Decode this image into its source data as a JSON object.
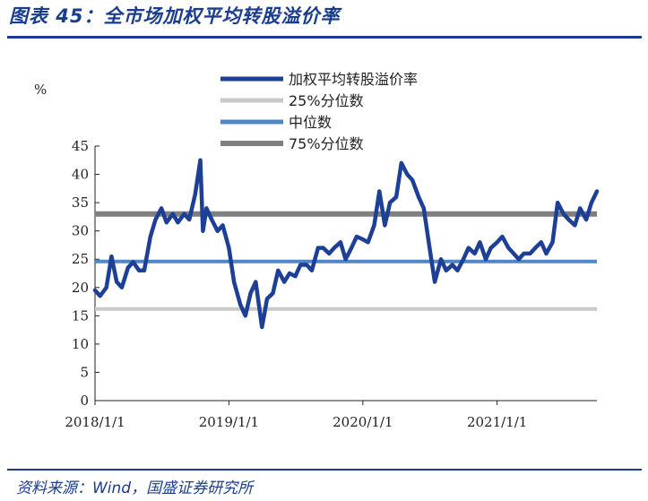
{
  "figure": {
    "title": "图表 45：全市场加权平均转股溢价率",
    "source": "资料来源：Wind，国盛证券研究所"
  },
  "colors": {
    "main": "#1d3f96",
    "p25": "#c9c9c9",
    "median": "#4f86c6",
    "p75": "#7f7f7f",
    "accent": "#1a3d8f"
  },
  "chart_data": {
    "type": "line",
    "title": "",
    "xlabel": "",
    "ylabel": "%",
    "ylim": [
      0,
      45
    ],
    "yticks": [
      "0",
      "5",
      "10",
      "15",
      "20",
      "25",
      "30",
      "35",
      "40",
      "45"
    ],
    "xlim": [
      "2018-01-01",
      "2021-09-30"
    ],
    "xticks": [
      "2018/1/1",
      "2019/1/1",
      "2020/1/1",
      "2021/1/1"
    ],
    "grid": false,
    "legend": "top",
    "series": [
      {
        "name": "加权平均转股溢价率",
        "x": [
          "2018-01-01",
          "2018-01-15",
          "2018-02-01",
          "2018-02-15",
          "2018-03-01",
          "2018-03-15",
          "2018-04-01",
          "2018-04-15",
          "2018-05-01",
          "2018-05-15",
          "2018-06-01",
          "2018-06-15",
          "2018-07-01",
          "2018-07-15",
          "2018-08-01",
          "2018-08-15",
          "2018-09-01",
          "2018-09-15",
          "2018-10-01",
          "2018-10-15",
          "2018-10-22",
          "2018-11-01",
          "2018-11-15",
          "2018-12-01",
          "2018-12-15",
          "2019-01-01",
          "2019-01-15",
          "2019-02-01",
          "2019-02-15",
          "2019-03-01",
          "2019-03-15",
          "2019-04-01",
          "2019-04-15",
          "2019-05-01",
          "2019-05-15",
          "2019-06-01",
          "2019-06-15",
          "2019-07-01",
          "2019-07-15",
          "2019-08-01",
          "2019-08-15",
          "2019-09-01",
          "2019-09-15",
          "2019-10-01",
          "2019-10-15",
          "2019-11-01",
          "2019-11-15",
          "2019-12-01",
          "2019-12-15",
          "2020-01-01",
          "2020-01-15",
          "2020-02-01",
          "2020-02-15",
          "2020-03-01",
          "2020-03-15",
          "2020-04-01",
          "2020-04-15",
          "2020-05-01",
          "2020-05-15",
          "2020-06-01",
          "2020-06-15",
          "2020-07-01",
          "2020-07-15",
          "2020-08-01",
          "2020-08-15",
          "2020-09-01",
          "2020-09-15",
          "2020-10-01",
          "2020-10-15",
          "2020-11-01",
          "2020-11-15",
          "2020-12-01",
          "2020-12-15",
          "2021-01-01",
          "2021-01-15",
          "2021-02-01",
          "2021-02-15",
          "2021-03-01",
          "2021-03-15",
          "2021-04-01",
          "2021-04-15",
          "2021-05-01",
          "2021-05-15",
          "2021-06-01",
          "2021-06-15",
          "2021-07-01",
          "2021-07-15",
          "2021-08-01",
          "2021-08-15",
          "2021-09-01",
          "2021-09-15",
          "2021-09-30"
        ],
        "values": [
          19.5,
          18.5,
          20,
          25.5,
          21,
          20,
          23.5,
          24.5,
          23,
          23,
          29,
          32,
          34,
          31.5,
          33,
          31.5,
          33,
          32,
          36.5,
          42.5,
          30,
          34,
          32,
          30,
          31,
          27,
          21,
          17,
          15,
          19,
          21,
          13,
          18,
          19,
          23,
          21,
          22.5,
          22,
          24,
          24,
          23,
          27,
          27,
          26,
          27,
          28,
          25,
          27,
          29,
          28.5,
          28,
          31,
          37,
          31,
          35,
          36,
          42,
          40,
          39,
          36,
          34,
          27,
          21,
          25,
          23,
          24,
          23,
          25,
          27,
          26,
          28,
          25,
          27,
          28,
          29,
          27,
          26,
          25,
          26,
          26,
          27,
          28,
          26,
          28,
          35,
          33,
          32,
          31,
          34,
          32,
          35,
          37
        ]
      },
      {
        "name": "25%分位数",
        "values": [
          16.2
        ]
      },
      {
        "name": "中位数",
        "values": [
          24.6
        ]
      },
      {
        "name": "75%分位数",
        "values": [
          33
        ]
      }
    ]
  }
}
